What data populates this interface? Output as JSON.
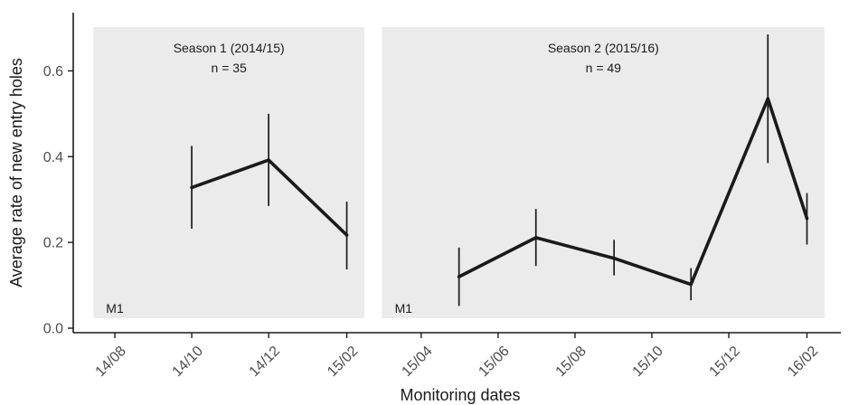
{
  "chart_data": {
    "type": "line",
    "xlabel": "Monitoring dates",
    "ylabel": "Average rate of new entry holes",
    "ylim": [
      0,
      0.7
    ],
    "y_ticks": [
      "0.0",
      "0.2",
      "0.4",
      "0.6"
    ],
    "x_ticks": [
      "14/08",
      "14/10",
      "14/12",
      "15/02",
      "15/04",
      "15/06",
      "15/08",
      "15/10",
      "15/12",
      "16/02"
    ],
    "grid": false,
    "panels": [
      {
        "title": "Season 1 (2014/15)",
        "n_label": "n = 35",
        "corner_label": "M1",
        "x_range": [
          "2014-07-15",
          "2015-02-15"
        ]
      },
      {
        "title": "Season 2 (2015/16)",
        "n_label": "n = 49",
        "corner_label": "M1",
        "x_range": [
          "2015-03-01",
          "2016-02-15"
        ]
      }
    ],
    "series": [
      {
        "x": [
          "2014-10-01",
          "2014-12-01",
          "2015-02-01"
        ],
        "y": [
          0.328,
          0.392,
          0.217
        ],
        "y_lower": [
          0.232,
          0.285,
          0.137
        ],
        "y_upper": [
          0.425,
          0.5,
          0.295
        ]
      },
      {
        "x": [
          "2015-05-01",
          "2015-07-01",
          "2015-09-01",
          "2015-11-01",
          "2016-01-01",
          "2016-02-01"
        ],
        "y": [
          0.12,
          0.211,
          0.163,
          0.102,
          0.535,
          0.256
        ],
        "y_lower": [
          0.052,
          0.145,
          0.123,
          0.065,
          0.385,
          0.195
        ],
        "y_upper": [
          0.188,
          0.278,
          0.206,
          0.14,
          0.685,
          0.315
        ]
      }
    ]
  }
}
